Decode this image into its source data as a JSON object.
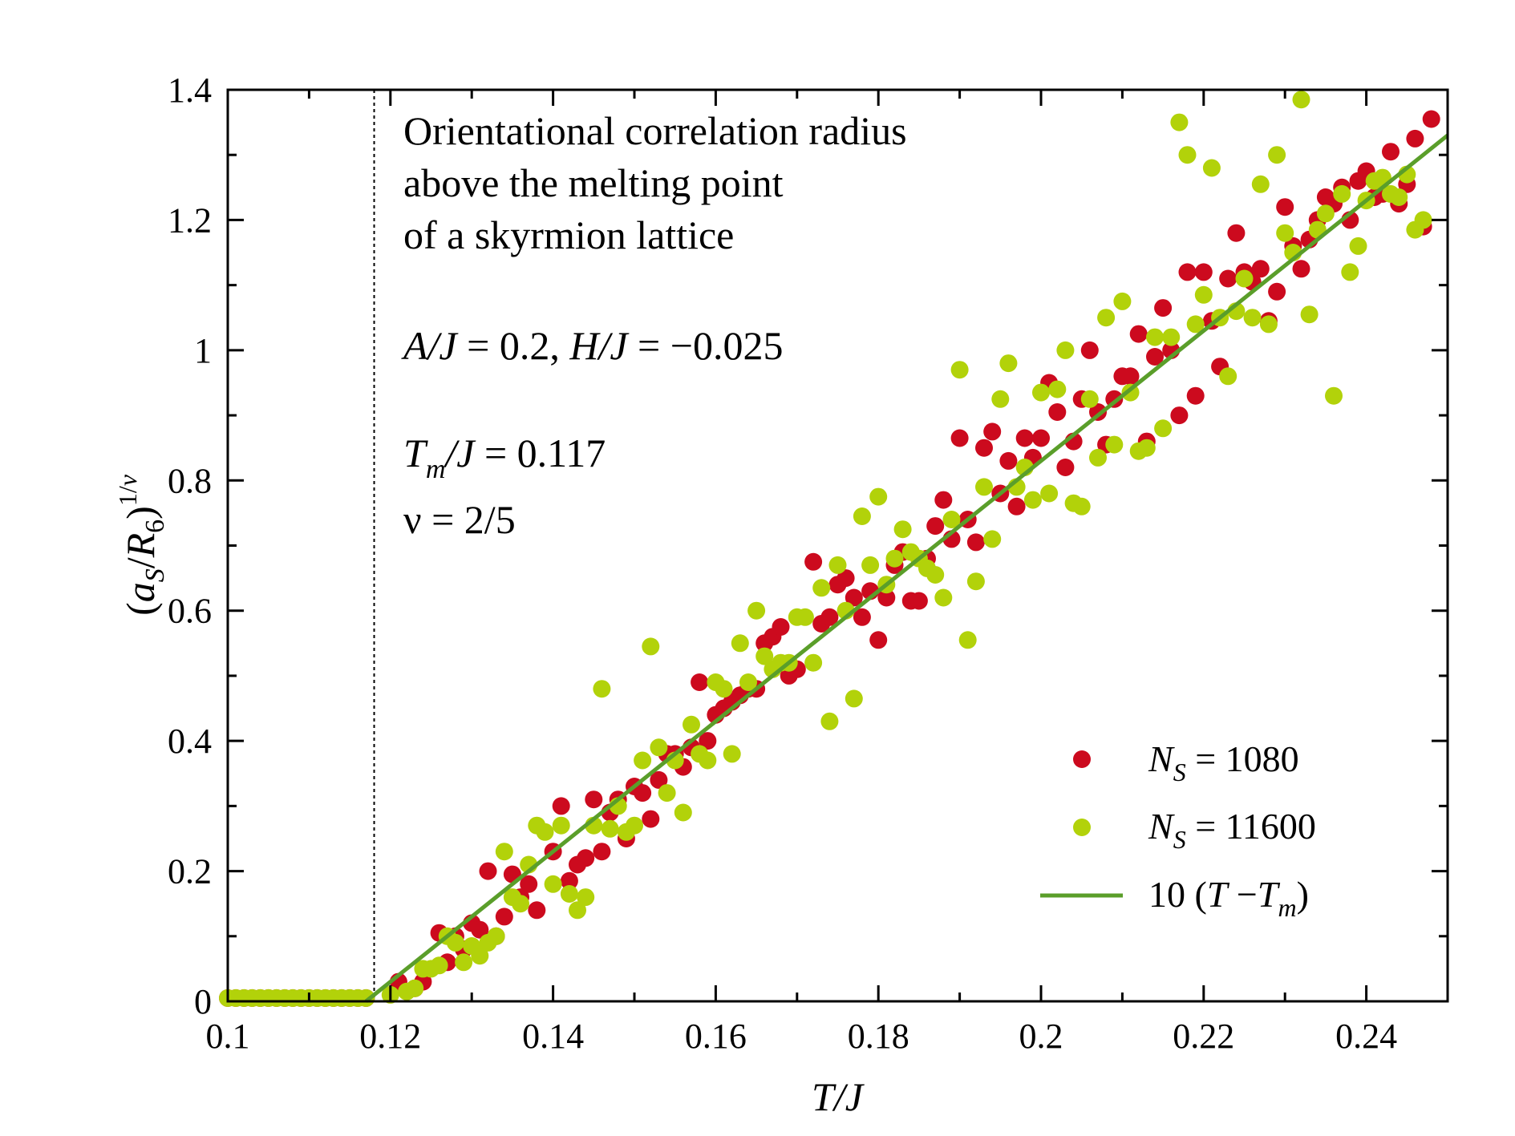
{
  "chart_data": {
    "type": "scatter",
    "title": "",
    "xlabel": "T/J",
    "ylabel": "(a_S/R_6)^{1/ν}",
    "xlim": [
      0.1,
      0.25
    ],
    "ylim": [
      0,
      1.4
    ],
    "xticks": [
      0.1,
      0.12,
      0.14,
      0.16,
      0.18,
      0.2,
      0.22,
      0.24
    ],
    "xtick_labels": [
      "0.1",
      "0.12",
      "0.14",
      "0.16",
      "0.18",
      "0.2",
      "0.22",
      "0.24"
    ],
    "yticks": [
      0,
      0.2,
      0.4,
      0.6,
      0.8,
      1,
      1.2,
      1.4
    ],
    "ytick_labels": [
      "0",
      "0.2",
      "0.4",
      "0.6",
      "0.8",
      "1",
      "1.2",
      "1.4"
    ],
    "grid": false,
    "legend_position": "bottom-right",
    "vline": 0.118,
    "annotations": {
      "title_lines": [
        "Orientational correlation radius",
        "above the melting point",
        "of a skyrmion lattice"
      ],
      "params_line": [
        "A/J",
        " = 0.2, ",
        "H/J",
        " = −0.025"
      ],
      "tm_line": [
        "T",
        "m",
        "/J",
        " = 0.117"
      ],
      "nu_line": "ν = 2/5"
    },
    "legend": {
      "series1": [
        "N",
        "S",
        " = 1080"
      ],
      "series2": [
        "N",
        "S",
        " = 11600"
      ],
      "fit": [
        "10 (",
        "T",
        " −",
        "T",
        "m",
        ")"
      ]
    },
    "colors": {
      "series1": "#cc0a1e",
      "series2": "#b2d20a",
      "fit": "#5a9e2a"
    },
    "series": [
      {
        "name": "N_S = 1080",
        "color": "#cc0a1e",
        "x": [
          0.1,
          0.101,
          0.102,
          0.103,
          0.104,
          0.105,
          0.106,
          0.107,
          0.108,
          0.109,
          0.11,
          0.111,
          0.112,
          0.113,
          0.114,
          0.115,
          0.116,
          0.117,
          0.121,
          0.123,
          0.124,
          0.126,
          0.127,
          0.128,
          0.129,
          0.13,
          0.131,
          0.132,
          0.133,
          0.134,
          0.135,
          0.136,
          0.137,
          0.138,
          0.14,
          0.141,
          0.142,
          0.143,
          0.144,
          0.145,
          0.146,
          0.147,
          0.148,
          0.149,
          0.15,
          0.151,
          0.152,
          0.153,
          0.154,
          0.155,
          0.156,
          0.157,
          0.158,
          0.159,
          0.16,
          0.161,
          0.162,
          0.163,
          0.164,
          0.165,
          0.166,
          0.167,
          0.168,
          0.169,
          0.17,
          0.172,
          0.173,
          0.174,
          0.175,
          0.176,
          0.177,
          0.178,
          0.179,
          0.18,
          0.181,
          0.182,
          0.183,
          0.184,
          0.185,
          0.186,
          0.187,
          0.188,
          0.189,
          0.19,
          0.191,
          0.192,
          0.193,
          0.194,
          0.195,
          0.196,
          0.197,
          0.198,
          0.199,
          0.2,
          0.201,
          0.202,
          0.203,
          0.204,
          0.205,
          0.206,
          0.207,
          0.208,
          0.209,
          0.21,
          0.211,
          0.212,
          0.213,
          0.214,
          0.215,
          0.216,
          0.217,
          0.218,
          0.219,
          0.22,
          0.221,
          0.222,
          0.223,
          0.224,
          0.225,
          0.226,
          0.227,
          0.228,
          0.229,
          0.23,
          0.231,
          0.232,
          0.233,
          0.234,
          0.235,
          0.236,
          0.237,
          0.238,
          0.239,
          0.24,
          0.241,
          0.242,
          0.243,
          0.244,
          0.245,
          0.246,
          0.247,
          0.248
        ],
        "y": [
          0.005,
          0.005,
          0.005,
          0.005,
          0.005,
          0.005,
          0.005,
          0.005,
          0.005,
          0.005,
          0.005,
          0.005,
          0.005,
          0.005,
          0.005,
          0.005,
          0.005,
          0.005,
          0.03,
          0.02,
          0.03,
          0.105,
          0.06,
          0.1,
          0.08,
          0.12,
          0.11,
          0.2,
          0.1,
          0.13,
          0.195,
          0.16,
          0.18,
          0.14,
          0.23,
          0.3,
          0.185,
          0.21,
          0.22,
          0.31,
          0.23,
          0.29,
          0.31,
          0.25,
          0.33,
          0.32,
          0.28,
          0.34,
          0.38,
          0.38,
          0.36,
          0.39,
          0.49,
          0.4,
          0.44,
          0.45,
          0.46,
          0.47,
          0.48,
          0.48,
          0.55,
          0.56,
          0.575,
          0.5,
          0.51,
          0.675,
          0.58,
          0.59,
          0.64,
          0.65,
          0.62,
          0.59,
          0.63,
          0.555,
          0.62,
          0.67,
          0.69,
          0.615,
          0.615,
          0.68,
          0.73,
          0.77,
          0.71,
          0.865,
          0.74,
          0.705,
          0.85,
          0.875,
          0.78,
          0.83,
          0.76,
          0.865,
          0.835,
          0.865,
          0.95,
          0.905,
          0.82,
          0.86,
          0.925,
          1.0,
          0.905,
          0.855,
          0.925,
          0.96,
          0.96,
          1.025,
          0.86,
          0.99,
          1.065,
          1.0,
          0.9,
          1.12,
          0.93,
          1.12,
          1.045,
          0.975,
          1.11,
          1.18,
          1.12,
          1.105,
          1.125,
          1.045,
          1.09,
          1.22,
          1.16,
          1.125,
          1.17,
          1.2,
          1.235,
          1.225,
          1.25,
          1.2,
          1.26,
          1.275,
          1.235,
          1.24,
          1.305,
          1.225,
          1.255,
          1.325,
          1.19,
          1.355
        ]
      },
      {
        "name": "N_S = 11600",
        "color": "#b2d20a",
        "x": [
          0.1,
          0.101,
          0.102,
          0.103,
          0.104,
          0.105,
          0.106,
          0.107,
          0.108,
          0.109,
          0.11,
          0.111,
          0.112,
          0.113,
          0.114,
          0.115,
          0.116,
          0.117,
          0.12,
          0.122,
          0.123,
          0.124,
          0.125,
          0.126,
          0.127,
          0.128,
          0.129,
          0.13,
          0.131,
          0.132,
          0.133,
          0.134,
          0.135,
          0.136,
          0.137,
          0.138,
          0.139,
          0.14,
          0.141,
          0.142,
          0.143,
          0.144,
          0.145,
          0.146,
          0.147,
          0.148,
          0.149,
          0.15,
          0.151,
          0.152,
          0.153,
          0.154,
          0.155,
          0.156,
          0.157,
          0.158,
          0.159,
          0.16,
          0.161,
          0.162,
          0.163,
          0.164,
          0.165,
          0.166,
          0.167,
          0.168,
          0.169,
          0.17,
          0.171,
          0.172,
          0.173,
          0.174,
          0.175,
          0.176,
          0.177,
          0.178,
          0.179,
          0.18,
          0.181,
          0.182,
          0.183,
          0.184,
          0.185,
          0.186,
          0.187,
          0.188,
          0.189,
          0.19,
          0.191,
          0.192,
          0.193,
          0.194,
          0.195,
          0.196,
          0.197,
          0.198,
          0.199,
          0.2,
          0.201,
          0.202,
          0.203,
          0.204,
          0.205,
          0.206,
          0.207,
          0.208,
          0.209,
          0.21,
          0.211,
          0.212,
          0.213,
          0.214,
          0.215,
          0.216,
          0.217,
          0.218,
          0.219,
          0.22,
          0.221,
          0.222,
          0.223,
          0.224,
          0.225,
          0.226,
          0.227,
          0.228,
          0.229,
          0.23,
          0.231,
          0.232,
          0.233,
          0.234,
          0.235,
          0.236,
          0.237,
          0.238,
          0.239,
          0.24,
          0.241,
          0.242,
          0.243,
          0.244,
          0.245,
          0.246,
          0.247
        ],
        "y": [
          0.005,
          0.005,
          0.005,
          0.005,
          0.005,
          0.005,
          0.005,
          0.005,
          0.005,
          0.005,
          0.005,
          0.005,
          0.005,
          0.005,
          0.005,
          0.005,
          0.005,
          0.005,
          0.01,
          0.015,
          0.02,
          0.05,
          0.05,
          0.055,
          0.1,
          0.09,
          0.06,
          0.085,
          0.07,
          0.09,
          0.1,
          0.23,
          0.16,
          0.15,
          0.21,
          0.27,
          0.26,
          0.18,
          0.27,
          0.165,
          0.14,
          0.16,
          0.27,
          0.48,
          0.265,
          0.3,
          0.26,
          0.27,
          0.37,
          0.545,
          0.39,
          0.32,
          0.37,
          0.29,
          0.425,
          0.38,
          0.37,
          0.49,
          0.48,
          0.38,
          0.55,
          0.49,
          0.6,
          0.53,
          0.51,
          0.52,
          0.52,
          0.59,
          0.59,
          0.52,
          0.635,
          0.43,
          0.67,
          0.6,
          0.465,
          0.745,
          0.67,
          0.775,
          0.64,
          0.68,
          0.725,
          0.69,
          0.68,
          0.665,
          0.655,
          0.62,
          0.74,
          0.97,
          0.555,
          0.645,
          0.79,
          0.71,
          0.925,
          0.98,
          0.79,
          0.82,
          0.77,
          0.935,
          0.78,
          0.94,
          1.0,
          0.765,
          0.76,
          0.925,
          0.835,
          1.05,
          0.855,
          1.075,
          0.935,
          0.845,
          0.85,
          1.02,
          0.88,
          1.02,
          1.35,
          1.3,
          1.04,
          1.085,
          1.28,
          1.05,
          0.96,
          1.06,
          1.11,
          1.05,
          1.255,
          1.04,
          1.3,
          1.18,
          1.15,
          1.385,
          1.055,
          1.185,
          1.21,
          0.93,
          1.24,
          1.12,
          1.16,
          1.23,
          1.26,
          1.265,
          1.24,
          1.235,
          1.27,
          1.185,
          1.2
        ]
      }
    ],
    "fit": {
      "name": "10 (T − T_m)",
      "slope": 10,
      "tm": 0.117,
      "x_range": [
        0.1,
        0.25
      ]
    }
  }
}
